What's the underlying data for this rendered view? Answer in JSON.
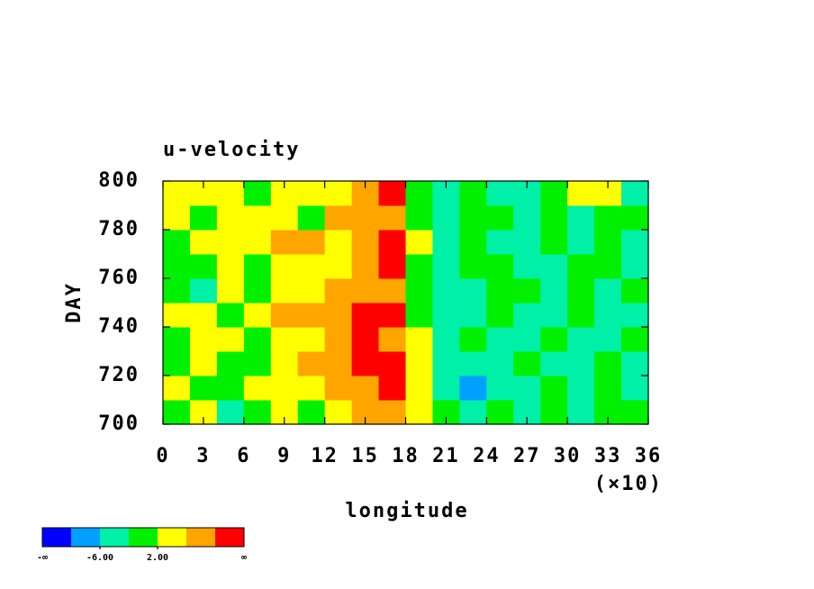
{
  "chart_data": {
    "type": "contour",
    "title": "u-velocity",
    "x_label": "longitude",
    "x_scale_label": "(×10)",
    "y_label": "DAY",
    "x": [
      1,
      3,
      5,
      7,
      9,
      11,
      13,
      15,
      17,
      19,
      21,
      23,
      25,
      27,
      29,
      31,
      33,
      35
    ],
    "y": [
      705,
      715,
      725,
      735,
      745,
      755,
      765,
      775,
      785,
      795
    ],
    "z": [
      [
        0,
        2,
        -3,
        1,
        3,
        1,
        4,
        6,
        8,
        3,
        -1,
        -3,
        -2,
        -4,
        -1,
        -3,
        -2,
        -1
      ],
      [
        4,
        1,
        -1,
        3,
        5,
        2,
        7,
        9,
        12,
        4,
        -4,
        -7,
        -3,
        -5,
        -2,
        -3,
        1,
        -4
      ],
      [
        1,
        3,
        0,
        -2,
        4,
        6,
        8,
        12,
        13,
        5,
        -3,
        -4,
        -6,
        -2,
        -3,
        -5,
        -2,
        -3
      ],
      [
        -1,
        2,
        4,
        1,
        3,
        2,
        7,
        11,
        9,
        3,
        -3,
        -2,
        -4,
        -3,
        -1,
        -3,
        -4,
        -2
      ],
      [
        2,
        4,
        1,
        5,
        7,
        8,
        9,
        12,
        11,
        1,
        -4,
        -3,
        -2,
        -5,
        -3,
        -1,
        -4,
        -3
      ],
      [
        1,
        -3,
        2,
        1,
        3,
        4,
        6,
        8,
        7,
        -2,
        -5,
        -3,
        -2,
        1,
        -3,
        -2,
        -4,
        0
      ],
      [
        -2,
        1,
        3,
        0,
        2,
        4,
        5,
        9,
        12,
        -1,
        -3,
        1,
        -2,
        -4,
        -3,
        -1,
        -2,
        -3
      ],
      [
        1,
        3,
        2,
        4,
        7,
        6,
        4,
        7,
        11,
        2,
        -3,
        -2,
        -4,
        -3,
        -1,
        -3,
        -2,
        -4
      ],
      [
        2,
        1,
        3,
        5,
        4,
        1,
        6,
        8,
        9,
        -1,
        -3,
        -2,
        1,
        -3,
        -2,
        -3,
        1,
        -2
      ],
      [
        3,
        4,
        2,
        1,
        5,
        3,
        4,
        6,
        12,
        0,
        -3,
        -2,
        -5,
        -3,
        -2,
        3,
        4,
        -3
      ]
    ],
    "xlim": [
      0,
      36
    ],
    "ylim": [
      700,
      800
    ],
    "xticks": [
      0,
      3,
      6,
      9,
      12,
      15,
      18,
      21,
      24,
      27,
      30,
      33,
      36
    ],
    "yticks": [
      700,
      720,
      740,
      760,
      780,
      800
    ],
    "levels": [
      -10,
      -6,
      -2,
      2,
      6,
      10
    ],
    "colors": [
      "#0000ff",
      "#00a0ff",
      "#00f0a8",
      "#00f000",
      "#ffff00",
      "#ffa500",
      "#ff0000"
    ],
    "level_labels": [
      {
        "value": -6,
        "label": "-6.00"
      },
      {
        "value": 2,
        "label": "2.00"
      }
    ],
    "low_label": "-∞",
    "high_label": "∞"
  }
}
